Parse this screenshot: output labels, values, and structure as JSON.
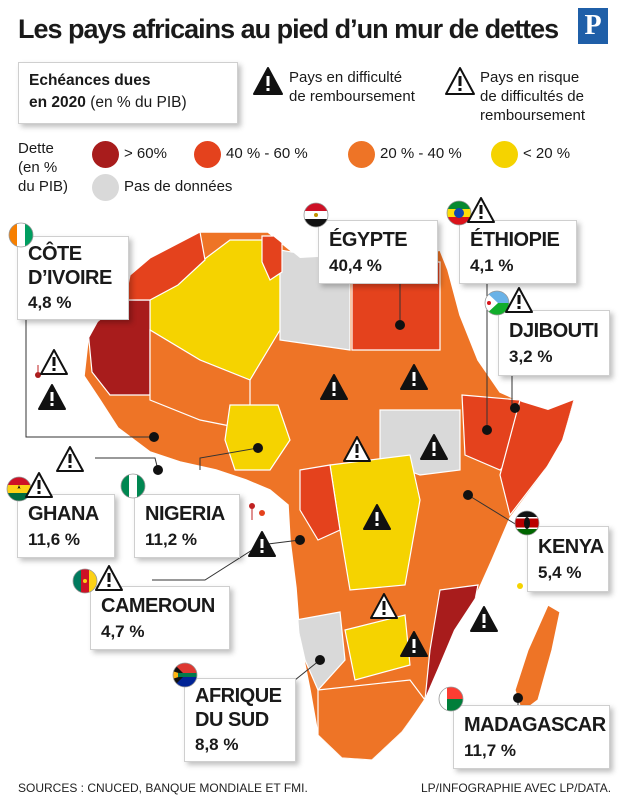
{
  "title": "Les pays africains au pied d’un mur de dettes",
  "logo_letter": "P",
  "due_box": {
    "line1": "Echéances dues",
    "line2_bold": "en 2020",
    "line2_rest": " (en % du PIB)"
  },
  "legend_icons": {
    "difficulty": {
      "line1": "Pays en difficulté",
      "line2": "de remboursement"
    },
    "risk": {
      "line1": "Pays en risque",
      "line2": "de difficultés de",
      "line3": "remboursement"
    }
  },
  "debt_legend": {
    "label_line1": "Dette",
    "label_line2": "(en %",
    "label_line3": "du PIB)",
    "items": [
      {
        "label": "> 60%",
        "color": "#a81c1c"
      },
      {
        "label": "40 % - 60 %",
        "color": "#e4421d"
      },
      {
        "label": "20 % - 40 %",
        "color": "#ee7426"
      },
      {
        "label": "< 20 %",
        "color": "#f5d300"
      }
    ],
    "no_data": {
      "label": "Pas de données",
      "color": "#d9d9d9"
    }
  },
  "countries": [
    {
      "key": "cote-divoire",
      "name_line1": "CÔTE",
      "name_line2": "D’IVOIRE",
      "value": "4,8 %",
      "status": "risk"
    },
    {
      "key": "egypte",
      "name_line1": "ÉGYPTE",
      "value": "40,4 %",
      "status": "none"
    },
    {
      "key": "ethiopie",
      "name_line1": "ÉTHIOPIE",
      "value": "4,1 %",
      "status": "risk"
    },
    {
      "key": "djibouti",
      "name_line1": "DJIBOUTI",
      "value": "3,2 %",
      "status": "risk"
    },
    {
      "key": "ghana",
      "name_line1": "GHANA",
      "value": "11,6 %",
      "status": "risk"
    },
    {
      "key": "nigeria",
      "name_line1": "NIGERIA",
      "value": "11,2 %",
      "status": "none"
    },
    {
      "key": "kenya",
      "name_line1": "KENYA",
      "value": "5,4 %",
      "status": "risk"
    },
    {
      "key": "cameroun",
      "name_line1": "CAMEROUN",
      "value": "4,7 %",
      "status": "risk"
    },
    {
      "key": "afrique-du-sud",
      "name_line1": "AFRIQUE",
      "name_line2": "DU SUD",
      "value": "8,8 %",
      "status": "none"
    },
    {
      "key": "madagascar",
      "name_line1": "MADAGASCAR",
      "value": "11,7 %",
      "status": "none"
    }
  ],
  "footer": {
    "sources": "SOURCES : CNUCED, BANQUE MONDIALE ET FMI.",
    "credit": "LP/INFOGRAPHIE AVEC LP/DATA."
  }
}
